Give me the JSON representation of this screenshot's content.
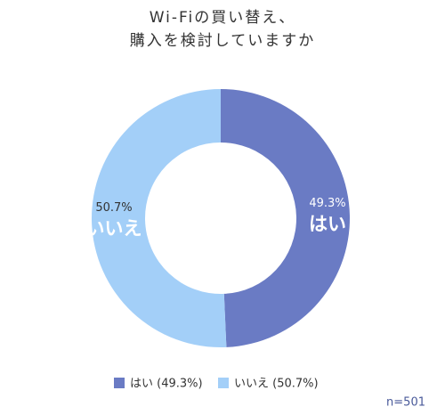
{
  "chart_data": {
    "type": "donut",
    "title_lines": [
      "Wi-Fiの買い替え、",
      "購入を検討していますか"
    ],
    "categories": [
      "はい",
      "いいえ"
    ],
    "values": [
      49.3,
      50.7
    ],
    "value_labels": [
      "49.3%",
      "50.7%"
    ],
    "colors": [
      "#6a7bc4",
      "#a3cff8"
    ],
    "legend_labels": [
      "はい (49.3%)",
      "いいえ (50.7%)"
    ],
    "note": "n=501"
  }
}
